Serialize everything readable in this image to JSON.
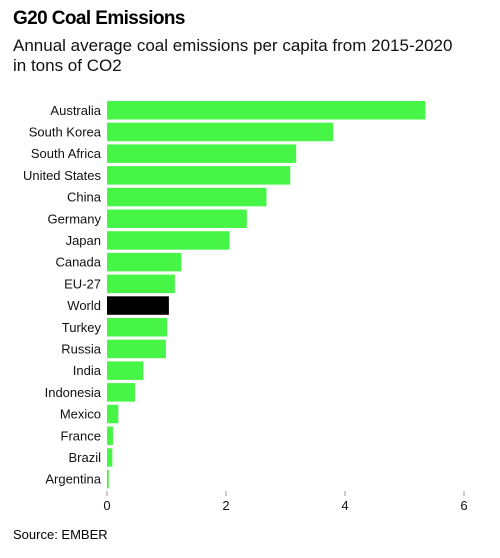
{
  "header": {
    "title": "G20 Coal Emissions",
    "subtitle_line1": "Annual average coal emissions per capita from 2015-2020",
    "subtitle_line2": "in tons of CO2"
  },
  "footer": {
    "source": "Source: EMBER"
  },
  "colors": {
    "bar": "#47f546",
    "highlight": "#000000",
    "tick": "#9a9a9a"
  },
  "chart_data": {
    "type": "bar",
    "orientation": "horizontal",
    "title": "G20 Coal Emissions",
    "subtitle": "Annual average coal emissions per capita from 2015-2020 in tons of CO2",
    "xlabel": "",
    "ylabel": "",
    "xlim": [
      0,
      6
    ],
    "xticks": [
      "0",
      "2",
      "4",
      "6"
    ],
    "grid": false,
    "legend": "none",
    "highlight": "World",
    "categories": [
      "Australia",
      "South Korea",
      "South Africa",
      "United States",
      "China",
      "Germany",
      "Japan",
      "Canada",
      "EU-27",
      "World",
      "Turkey",
      "Russia",
      "India",
      "Indonesia",
      "Mexico",
      "France",
      "Brazil",
      "Argentina"
    ],
    "values": [
      5.35,
      3.8,
      3.18,
      3.08,
      2.68,
      2.35,
      2.06,
      1.25,
      1.14,
      1.04,
      1.01,
      0.99,
      0.61,
      0.47,
      0.19,
      0.1,
      0.09,
      0.03
    ]
  }
}
